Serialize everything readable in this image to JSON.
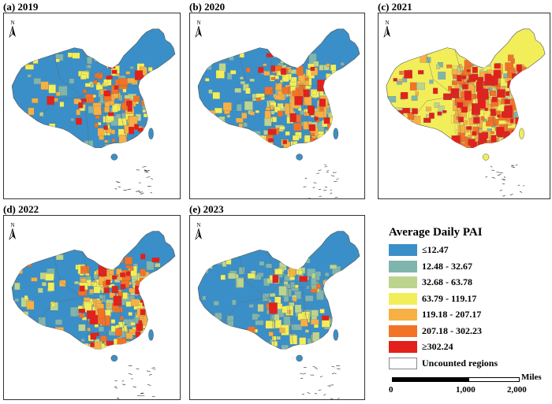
{
  "panels": [
    {
      "id": "2019",
      "title": "(a) 2019",
      "base": "#3a8fc8",
      "counts": {
        "c2": 40,
        "c3": 8,
        "c4": 55,
        "c5": 45,
        "c6": 20,
        "c7": 22
      }
    },
    {
      "id": "2020",
      "title": "(b) 2020",
      "base": "#3a8fc8",
      "counts": {
        "c2": 30,
        "c3": 60,
        "c4": 70,
        "c5": 45,
        "c6": 25,
        "c7": 20
      }
    },
    {
      "id": "2021",
      "title": "(c) 2021",
      "base": "#f2ee5a",
      "counts": {
        "c2": 40,
        "c3": 30,
        "c4": 50,
        "c5": 90,
        "c6": 80,
        "c7": 90
      }
    },
    {
      "id": "2022",
      "title": "(d) 2022",
      "base": "#3a8fc8",
      "counts": {
        "c2": 55,
        "c3": 45,
        "c4": 80,
        "c5": 55,
        "c6": 30,
        "c7": 30
      }
    },
    {
      "id": "2023",
      "title": "(e) 2023",
      "base": "#3a8fc8",
      "counts": {
        "c2": 80,
        "c3": 35,
        "c4": 35,
        "c5": 12,
        "c6": 5,
        "c7": 4
      }
    }
  ],
  "north_label": "N",
  "legend": {
    "title": "Average Daily PAI",
    "items": [
      {
        "label": "≤12.47",
        "color": "#3a8fc8"
      },
      {
        "label": "12.48 - 32.67",
        "color": "#7fb5ad"
      },
      {
        "label": "32.68 - 63.78",
        "color": "#bcd48d"
      },
      {
        "label": "63.79 - 119.17",
        "color": "#f2ee5a"
      },
      {
        "label": "119.18 - 207.17",
        "color": "#f6b043"
      },
      {
        "label": "207.18 - 302.23",
        "color": "#f37326"
      },
      {
        "label": "≥302.24",
        "color": "#e3201b"
      },
      {
        "label": "Uncounted regions",
        "color": "#ffffff"
      }
    ]
  },
  "scalebar": {
    "unit": "Miles",
    "ticks": [
      "0",
      "1,000",
      "2,000"
    ]
  }
}
